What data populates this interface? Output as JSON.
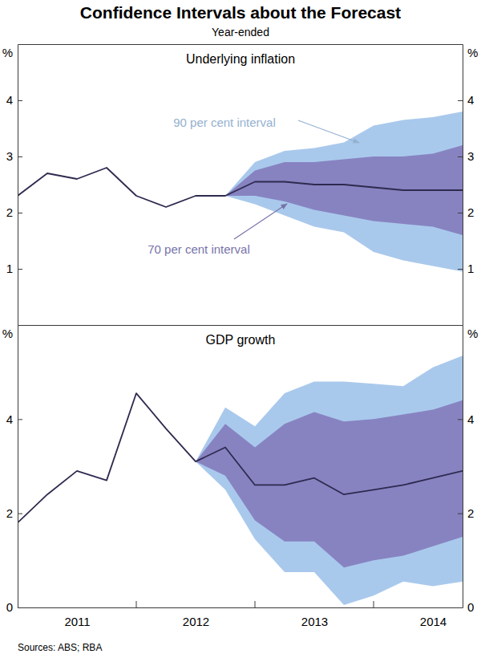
{
  "title": "Confidence Intervals about the Forecast",
  "subtitle": "Year-ended",
  "source": "Sources: ABS; RBA",
  "chart_data": [
    {
      "type": "line",
      "title": "Underlying inflation",
      "ylabel": "%",
      "tick_labels": "y",
      "x": [
        2011,
        2011.25,
        2011.5,
        2011.75,
        2012,
        2012.25,
        2012.5,
        2012.75,
        2013,
        2013.25,
        2013.5,
        2013.75,
        2014,
        2014.25,
        2014.5,
        2014.75
      ],
      "xlim": [
        2011,
        2014.75
      ],
      "ylim": [
        0,
        5
      ],
      "yticks": [
        1,
        2,
        3,
        4
      ],
      "series": [
        {
          "type": "band",
          "name": "90 per cent interval",
          "color": "#a9c9ec",
          "lower": [
            null,
            null,
            null,
            null,
            null,
            null,
            null,
            2.3,
            2.15,
            1.95,
            1.75,
            1.65,
            1.3,
            1.15,
            1.05,
            0.95
          ],
          "upper": [
            null,
            null,
            null,
            null,
            null,
            null,
            null,
            2.3,
            2.9,
            3.1,
            3.15,
            3.25,
            3.55,
            3.65,
            3.7,
            3.8
          ]
        },
        {
          "type": "band",
          "name": "70 per cent interval",
          "color": "#8783c1",
          "lower": [
            null,
            null,
            null,
            null,
            null,
            null,
            null,
            2.3,
            2.3,
            2.2,
            2.05,
            1.95,
            1.85,
            1.8,
            1.75,
            1.6
          ],
          "upper": [
            null,
            null,
            null,
            null,
            null,
            null,
            null,
            2.3,
            2.75,
            2.9,
            2.9,
            2.95,
            3.0,
            3.0,
            3.05,
            3.2
          ]
        },
        {
          "type": "line",
          "color": "#2e2a4f",
          "values": [
            2.3,
            2.7,
            2.6,
            2.8,
            2.3,
            2.1,
            2.3,
            2.3,
            2.55,
            2.55,
            2.5,
            2.5,
            2.45,
            2.4,
            2.4,
            2.4
          ]
        }
      ]
    },
    {
      "type": "line",
      "title": "GDP growth",
      "ylabel": "%",
      "x": [
        2011,
        2011.25,
        2011.5,
        2011.75,
        2012,
        2012.25,
        2012.5,
        2012.75,
        2013,
        2013.25,
        2013.5,
        2013.75,
        2014,
        2014.25,
        2014.5,
        2014.75
      ],
      "xlim": [
        2011,
        2014.75
      ],
      "xticks": [
        {
          "value": 2011.5,
          "label": "2011"
        },
        {
          "value": 2012.5,
          "label": "2012"
        },
        {
          "value": 2013.5,
          "label": "2013"
        },
        {
          "value": 2014.5,
          "label": "2014"
        }
      ],
      "ylim": [
        0,
        6
      ],
      "yticks": [
        0,
        2,
        4
      ],
      "series": [
        {
          "type": "band",
          "color": "#a9c9ec",
          "lower": [
            null,
            null,
            null,
            null,
            null,
            null,
            3.1,
            2.5,
            1.45,
            0.75,
            0.75,
            0.05,
            0.25,
            0.55,
            0.45,
            0.55
          ],
          "upper": [
            null,
            null,
            null,
            null,
            null,
            null,
            3.1,
            4.25,
            3.85,
            4.55,
            4.8,
            4.8,
            4.75,
            4.7,
            5.1,
            5.35
          ]
        },
        {
          "type": "band",
          "color": "#8783c1",
          "lower": [
            null,
            null,
            null,
            null,
            null,
            null,
            3.1,
            2.8,
            1.85,
            1.4,
            1.4,
            0.85,
            1.0,
            1.1,
            1.3,
            1.5
          ],
          "upper": [
            null,
            null,
            null,
            null,
            null,
            null,
            3.1,
            3.9,
            3.4,
            3.9,
            4.15,
            3.95,
            4.0,
            4.1,
            4.2,
            4.4
          ]
        },
        {
          "type": "line",
          "color": "#2e2a4f",
          "values": [
            1.8,
            2.4,
            2.9,
            2.7,
            4.55,
            3.8,
            3.1,
            3.4,
            2.6,
            2.6,
            2.75,
            2.4,
            2.5,
            2.6,
            2.75,
            2.9
          ]
        }
      ]
    }
  ]
}
